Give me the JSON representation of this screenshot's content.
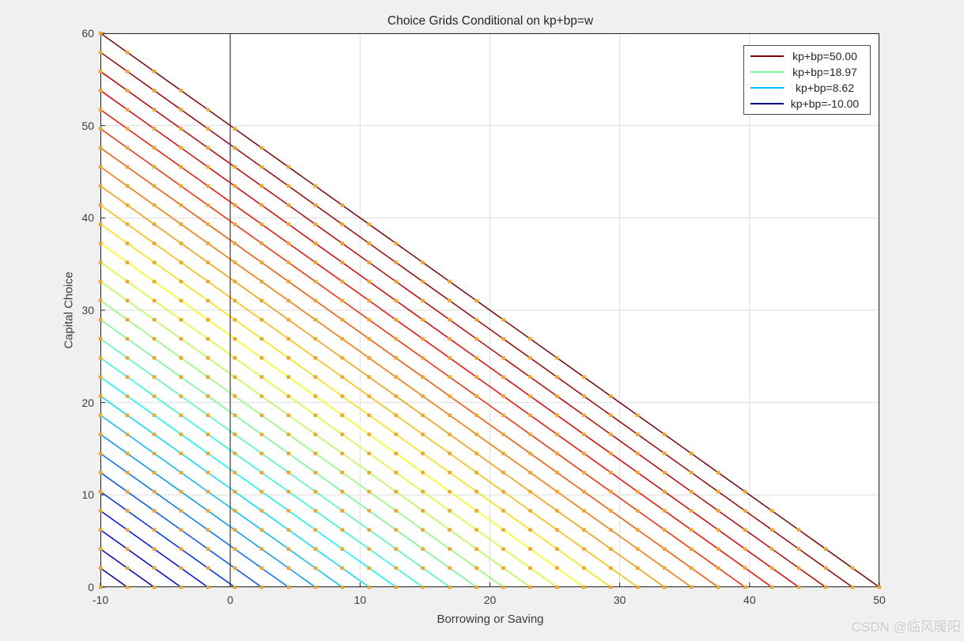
{
  "figure": {
    "watermark": "CSDN @临风暖阳"
  },
  "chart_data": {
    "type": "line",
    "title": "Choice Grids Conditional on kp+bp=w",
    "xlabel": "Borrowing or Saving",
    "ylabel": "Capital Choice",
    "xlim": [
      -10,
      50
    ],
    "ylim": [
      0,
      60
    ],
    "xticks": [
      -10,
      0,
      10,
      20,
      30,
      40,
      50
    ],
    "yticks": [
      0,
      10,
      20,
      30,
      40,
      50,
      60
    ],
    "grid": true,
    "colormap": "jet",
    "num_lines": 30,
    "w_range": [
      -10,
      50
    ],
    "w_values": [
      -10,
      -7.93,
      -5.86,
      -3.79,
      -1.72,
      0.34,
      2.41,
      4.48,
      6.55,
      8.62,
      10.69,
      12.76,
      14.83,
      16.9,
      18.97,
      21.03,
      23.1,
      25.17,
      27.24,
      29.31,
      31.38,
      33.45,
      35.52,
      37.59,
      39.66,
      41.72,
      43.79,
      45.86,
      47.93,
      50
    ],
    "series_rule": "Line i plots kp = w_i - bp for bp from -10 to w_i (slope -1 budget lines); markers placed at bp grid points (same 30-point grid as w) where kp >= 0.",
    "zero_vline_x": 0,
    "legend": [
      {
        "label": "kp+bp=50.00",
        "color": "#800000"
      },
      {
        "label": "kp+bp=18.97",
        "color": "#6eff91"
      },
      {
        "label": "kp+bp=8.62",
        "color": "#00bdff"
      },
      {
        "label": "kp+bp=-10.00",
        "color": "#000080"
      }
    ],
    "colors": {
      "figure_bg": "#f0f0f0",
      "plot_bg": "#ffffff",
      "grid_line": "#dedede",
      "axis_box": "#262626",
      "zero_line": "#4d4d4d",
      "marker": "#eda72e"
    }
  }
}
